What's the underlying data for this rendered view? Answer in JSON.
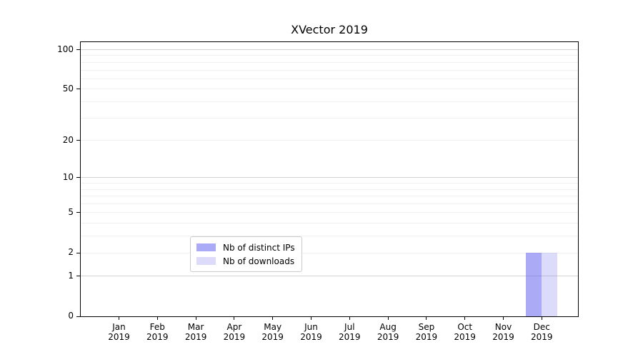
{
  "chart_data": {
    "type": "bar",
    "title": "XVector 2019",
    "categories": [
      "Jan",
      "Feb",
      "Mar",
      "Apr",
      "May",
      "Jun",
      "Jul",
      "Aug",
      "Sep",
      "Oct",
      "Nov",
      "Dec"
    ],
    "category_year": "2019",
    "series": [
      {
        "name": "Nb of distinct IPs",
        "color_hex": "#a9a9f7",
        "color_rgba": "rgba(85,85,238,0.5)",
        "values": [
          0,
          0,
          0,
          0,
          0,
          0,
          0,
          0,
          0,
          0,
          0,
          2
        ]
      },
      {
        "name": "Nb of downloads",
        "color_hex": "#dcdcfa",
        "color_rgba": "rgba(115,115,235,0.25)",
        "values": [
          0,
          0,
          0,
          0,
          0,
          0,
          0,
          0,
          0,
          0,
          0,
          2
        ]
      }
    ],
    "xlabel": "",
    "ylabel": "",
    "yscale": "log1p",
    "ylim": [
      0,
      114
    ],
    "y_ticks": [
      0,
      1,
      2,
      5,
      10,
      20,
      50,
      100
    ],
    "y_major_gridlines": [
      1,
      10,
      100
    ],
    "y_minor_gridlines": [
      2,
      3,
      4,
      5,
      6,
      7,
      8,
      9,
      20,
      30,
      40,
      50,
      60,
      70,
      80,
      90
    ],
    "grid": "horizontal",
    "legend": {
      "location": "lower center",
      "entries": [
        "Nb of distinct IPs",
        "Nb of downloads"
      ]
    },
    "colors": {
      "major_grid": "#d2d2d2",
      "minor_grid": "#f0f0f0",
      "spine": "#000000",
      "text": "#000000"
    }
  }
}
